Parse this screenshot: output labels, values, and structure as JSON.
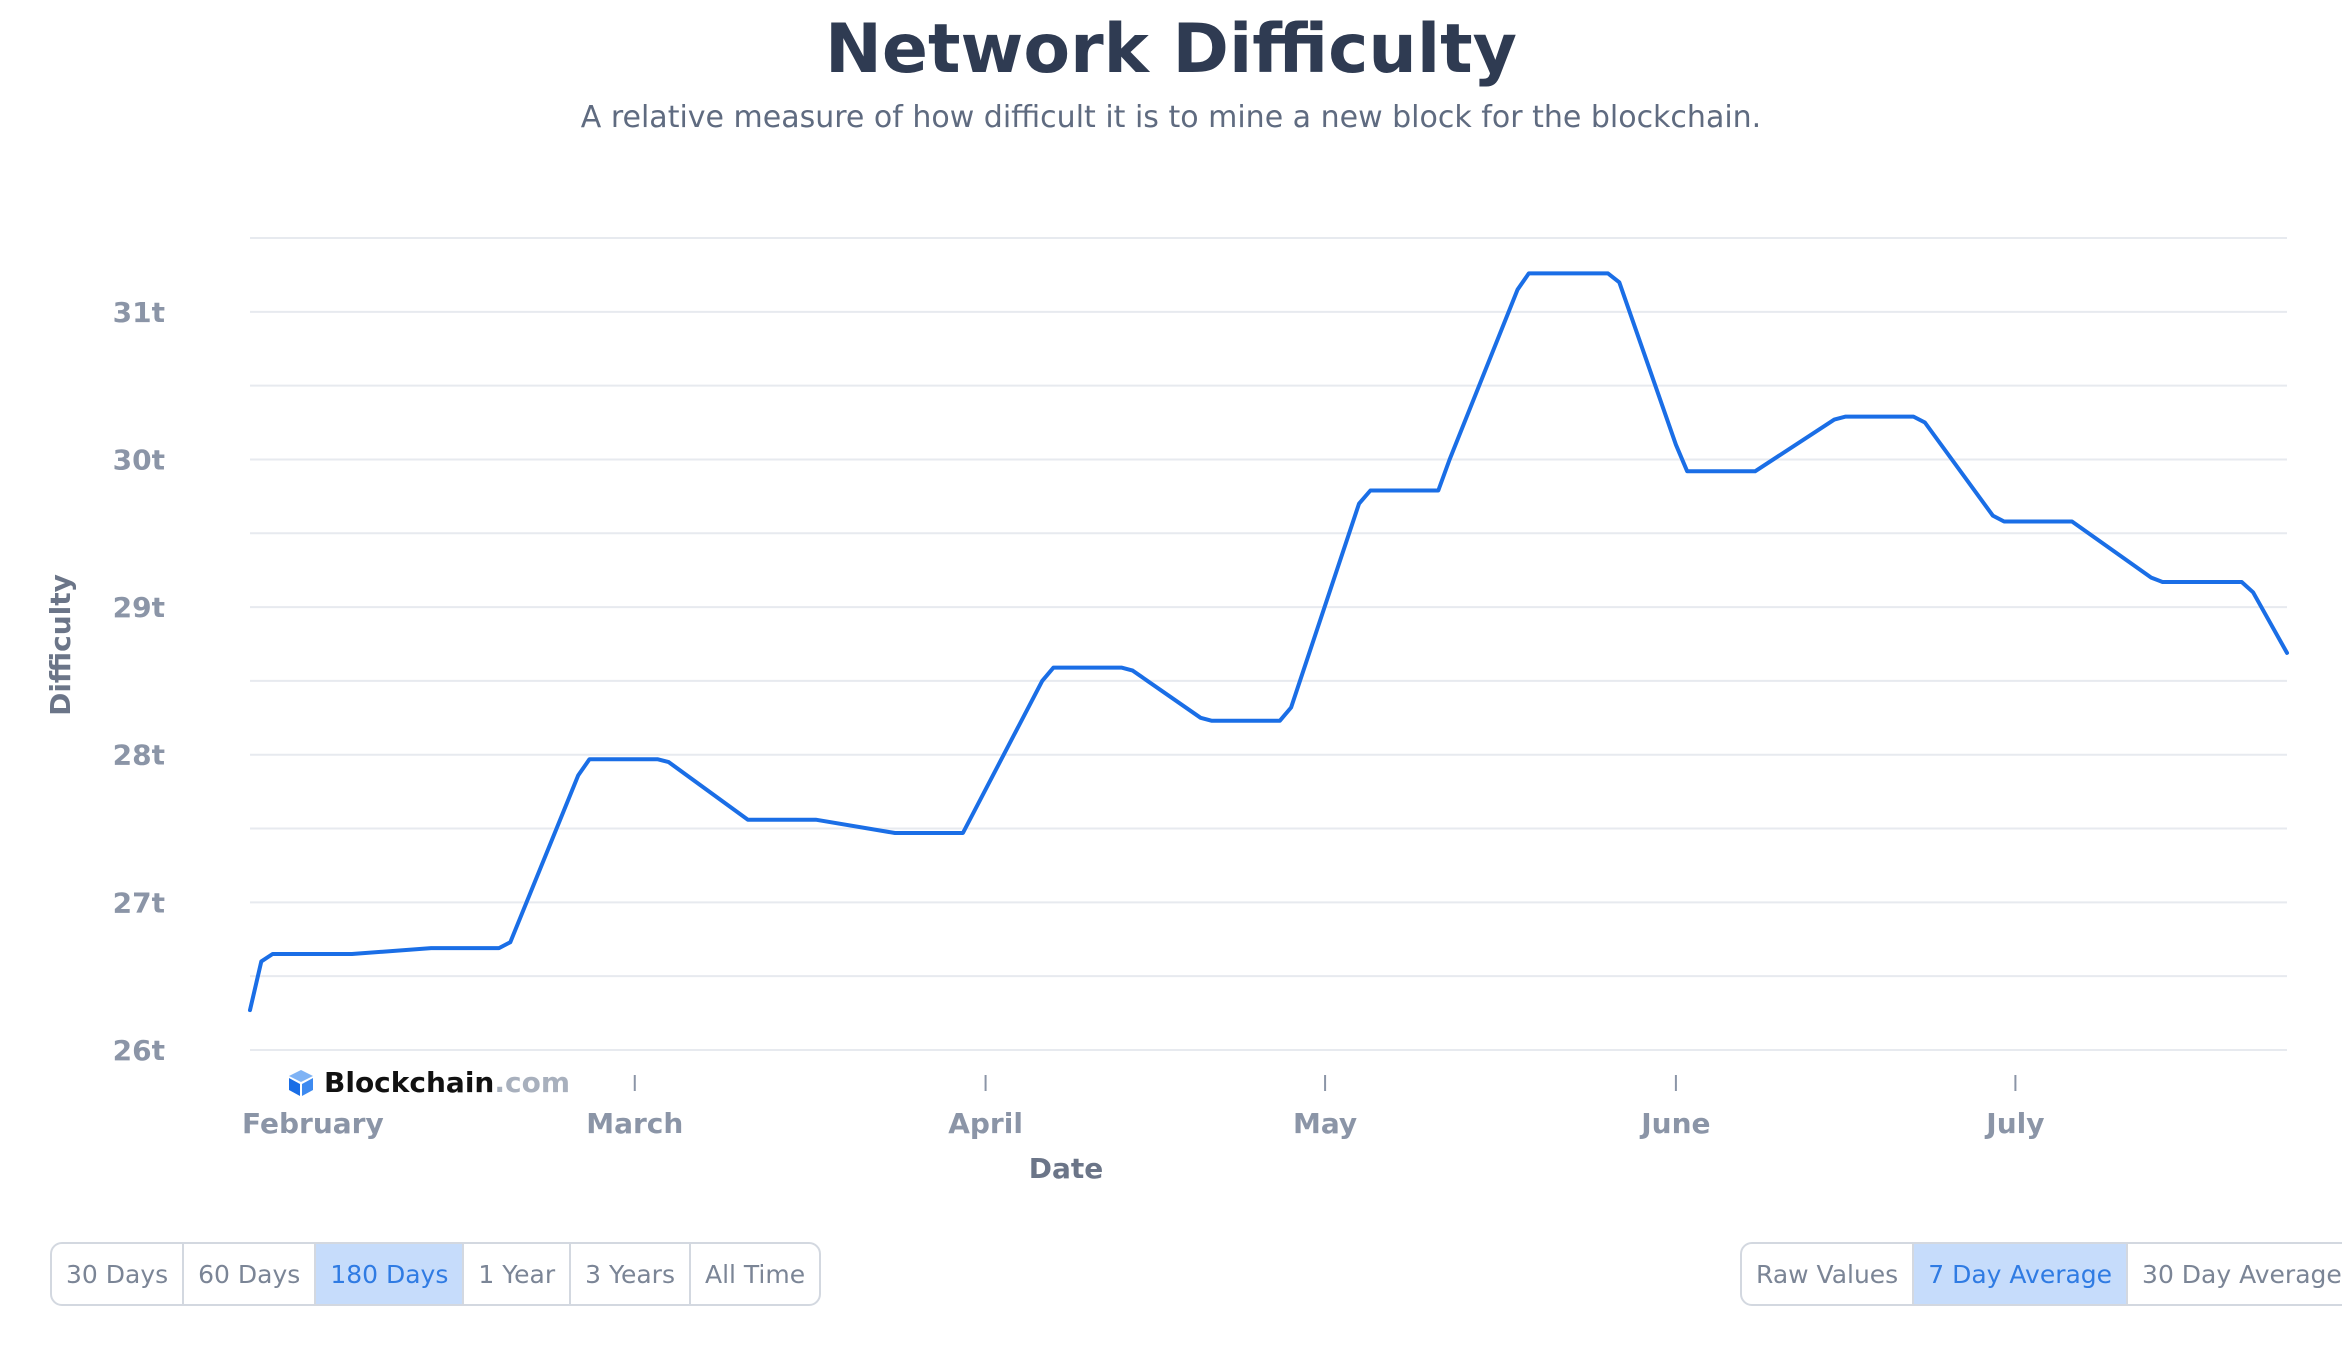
{
  "header": {
    "title": "Network Difficulty",
    "subtitle": "A relative measure of how difficult it is to mine a new block for the blockchain."
  },
  "brand": {
    "name": "Blockchain",
    "suffix": ".com"
  },
  "colors": {
    "line": "#1a6ee6",
    "grid": "#e7eaef",
    "active_bg": "#c6dcfb",
    "active_text": "#2f7be3"
  },
  "chart_data": {
    "type": "line",
    "xlabel": "Date",
    "ylabel": "Difficulty",
    "ylim": [
      26,
      31.5
    ],
    "yticks": [
      {
        "value": 26,
        "label": "26t"
      },
      {
        "value": 27,
        "label": "27t"
      },
      {
        "value": 28,
        "label": "28t"
      },
      {
        "value": 29,
        "label": "29t"
      },
      {
        "value": 30,
        "label": "30t"
      },
      {
        "value": 31,
        "label": "31t"
      }
    ],
    "xlim": [
      "2023-01-26",
      "2023-07-25"
    ],
    "xticks": [
      {
        "date": "2023-02-01",
        "label": "February"
      },
      {
        "date": "2023-03-01",
        "label": "March"
      },
      {
        "date": "2023-04-01",
        "label": "April"
      },
      {
        "date": "2023-05-01",
        "label": "May"
      },
      {
        "date": "2023-06-01",
        "label": "June"
      },
      {
        "date": "2023-07-01",
        "label": "July"
      }
    ],
    "grid": true,
    "series": [
      {
        "points": [
          [
            "2023-01-26",
            26.27
          ],
          [
            "2023-01-27",
            26.6
          ],
          [
            "2023-01-28",
            26.65
          ],
          [
            "2023-02-04",
            26.65
          ],
          [
            "2023-02-11",
            26.69
          ],
          [
            "2023-02-17",
            26.69
          ],
          [
            "2023-02-18",
            26.73
          ],
          [
            "2023-02-24",
            27.86
          ],
          [
            "2023-02-25",
            27.97
          ],
          [
            "2023-03-03",
            27.97
          ],
          [
            "2023-03-04",
            27.95
          ],
          [
            "2023-03-11",
            27.56
          ],
          [
            "2023-03-17",
            27.56
          ],
          [
            "2023-03-24",
            27.47
          ],
          [
            "2023-03-30",
            27.47
          ],
          [
            "2023-04-06",
            28.5
          ],
          [
            "2023-04-07",
            28.59
          ],
          [
            "2023-04-13",
            28.59
          ],
          [
            "2023-04-14",
            28.57
          ],
          [
            "2023-04-20",
            28.25
          ],
          [
            "2023-04-21",
            28.23
          ],
          [
            "2023-04-27",
            28.23
          ],
          [
            "2023-04-28",
            28.32
          ],
          [
            "2023-05-04",
            29.7
          ],
          [
            "2023-05-05",
            29.79
          ],
          [
            "2023-05-11",
            29.79
          ],
          [
            "2023-05-12",
            30.0
          ],
          [
            "2023-05-18",
            31.15
          ],
          [
            "2023-05-19",
            31.26
          ],
          [
            "2023-05-26",
            31.26
          ],
          [
            "2023-05-27",
            31.2
          ],
          [
            "2023-06-01",
            30.1
          ],
          [
            "2023-06-02",
            29.92
          ],
          [
            "2023-06-08",
            29.92
          ],
          [
            "2023-06-15",
            30.27
          ],
          [
            "2023-06-16",
            30.29
          ],
          [
            "2023-06-22",
            30.29
          ],
          [
            "2023-06-23",
            30.25
          ],
          [
            "2023-06-29",
            29.62
          ],
          [
            "2023-06-30",
            29.58
          ],
          [
            "2023-07-06",
            29.58
          ],
          [
            "2023-07-13",
            29.2
          ],
          [
            "2023-07-14",
            29.17
          ],
          [
            "2023-07-21",
            29.17
          ],
          [
            "2023-07-22",
            29.1
          ],
          [
            "2023-07-25",
            28.69
          ]
        ]
      }
    ]
  },
  "controls": {
    "range": [
      {
        "label": "30 Days",
        "active": false
      },
      {
        "label": "60 Days",
        "active": false
      },
      {
        "label": "180 Days",
        "active": true
      },
      {
        "label": "1 Year",
        "active": false
      },
      {
        "label": "3 Years",
        "active": false
      },
      {
        "label": "All Time",
        "active": false
      }
    ],
    "average": [
      {
        "label": "Raw Values",
        "active": false
      },
      {
        "label": "7 Day Average",
        "active": true
      },
      {
        "label": "30 Day Average",
        "active": false
      }
    ]
  }
}
